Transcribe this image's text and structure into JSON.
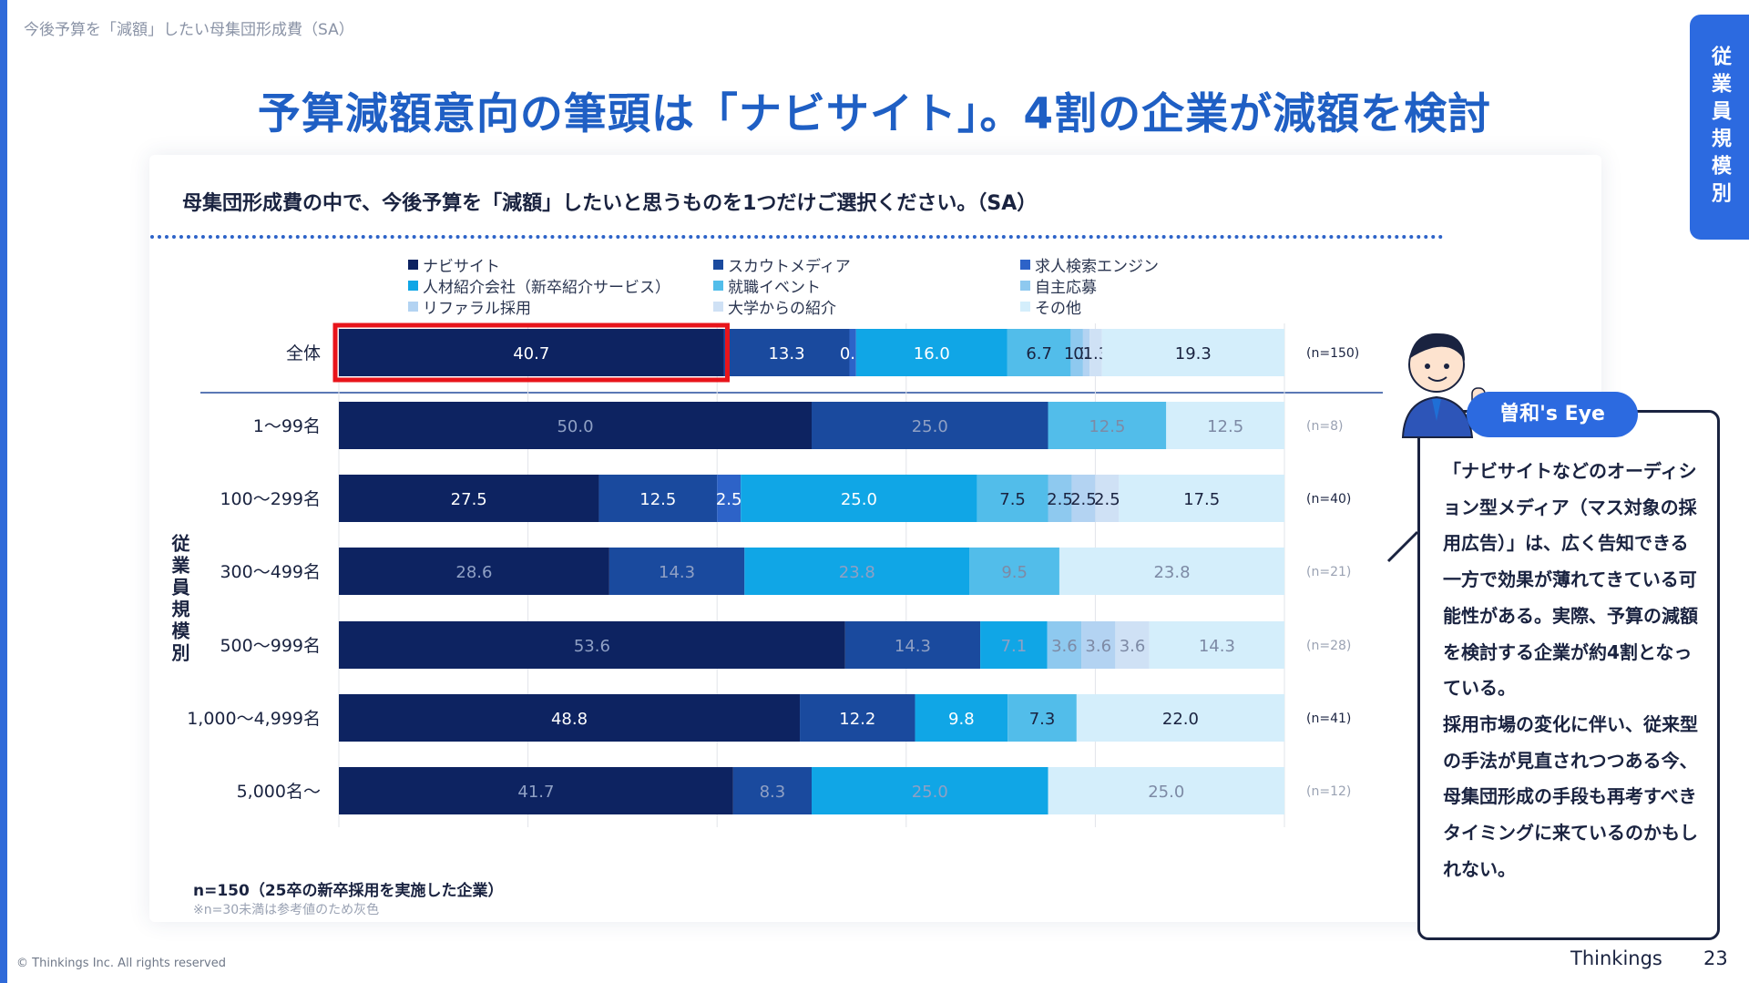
{
  "breadcrumb": "今後予算を「減額」したい母集団形成費（SA）",
  "headline": "予算減額意向の筆頭は「ナビサイト」。4割の企業が減額を検討",
  "side_tab": "従業員規模別",
  "question": "母集団形成費の中で、今後予算を「減額」したいと思うものを1つだけご選択ください。（SA）",
  "y_group_label": "従業員規模別",
  "footnote": "n=150（25卒の新卒採用を実施した企業）",
  "footnote_gray": "※n=30未満は参考値のため灰色",
  "copyright": "© Thinkings Inc. All rights reserved",
  "brand": "Thinkings",
  "page_number": "23",
  "eye": {
    "badge": "曽和's Eye",
    "text": "「ナビサイトなどのオーディション型メディア（マス対象の採用広告）」は、広く告知できる一方で効果が薄れてきている可能性がある。実際、予算の減額を検討する企業が約4割となっている。\n採用市場の変化に伴い、従来型の手法が見直されつつある今、母集団形成の手段も再考すべきタイミングに来ているのかもしれない。"
  },
  "legend": [
    {
      "label": "ナビサイト",
      "color": "#0d2361"
    },
    {
      "label": "スカウトメディア",
      "color": "#1a4a9e"
    },
    {
      "label": "求人検索エンジン",
      "color": "#2d63c8"
    },
    {
      "label": "人材紹介会社（新卒紹介サービス）",
      "color": "#10a6e6"
    },
    {
      "label": "就職イベント",
      "color": "#52bdea"
    },
    {
      "label": "自主応募",
      "color": "#8ec9ef"
    },
    {
      "label": "リファラル採用",
      "color": "#b3d3f2"
    },
    {
      "label": "大学からの紹介",
      "color": "#cfe1f5"
    },
    {
      "label": "その他",
      "color": "#d4eefb"
    }
  ],
  "chart_data": {
    "type": "bar",
    "orientation": "horizontal-stacked-100",
    "xlim": [
      0,
      100
    ],
    "categories": [
      "全体",
      "1〜99名",
      "100〜299名",
      "300〜499名",
      "500〜999名",
      "1,000〜4,999名",
      "5,000名〜"
    ],
    "n_labels": [
      "(n=150)",
      "(n=8)",
      "(n=40)",
      "(n=21)",
      "(n=28)",
      "(n=41)",
      "(n=12)"
    ],
    "gray_rows": [
      false,
      true,
      false,
      true,
      true,
      false,
      true
    ],
    "highlight": {
      "row": 0,
      "series": 0
    },
    "series": [
      {
        "name": "ナビサイト",
        "values": [
          40.7,
          50.0,
          27.5,
          28.6,
          53.6,
          48.8,
          41.7
        ]
      },
      {
        "name": "スカウトメディア",
        "values": [
          13.3,
          25.0,
          12.5,
          14.3,
          14.3,
          12.2,
          8.3
        ]
      },
      {
        "name": "求人検索エンジン",
        "values": [
          0.7,
          0,
          2.5,
          0,
          0,
          0,
          0
        ]
      },
      {
        "name": "人材紹介会社（新卒紹介サービス）",
        "values": [
          16.0,
          0,
          25.0,
          23.8,
          7.1,
          9.8,
          25.0
        ]
      },
      {
        "name": "就職イベント",
        "values": [
          6.7,
          12.5,
          7.5,
          9.5,
          0,
          7.3,
          0
        ]
      },
      {
        "name": "自主応募",
        "values": [
          1.3,
          0,
          2.5,
          0,
          3.6,
          0,
          0
        ]
      },
      {
        "name": "リファラル採用",
        "values": [
          0.7,
          0,
          2.5,
          0,
          3.6,
          0,
          0
        ]
      },
      {
        "name": "大学からの紹介",
        "values": [
          1.3,
          0,
          2.5,
          0,
          3.6,
          0,
          0
        ]
      },
      {
        "name": "その他",
        "values": [
          19.3,
          12.5,
          17.5,
          23.8,
          14.3,
          22.0,
          25.0
        ]
      }
    ]
  }
}
